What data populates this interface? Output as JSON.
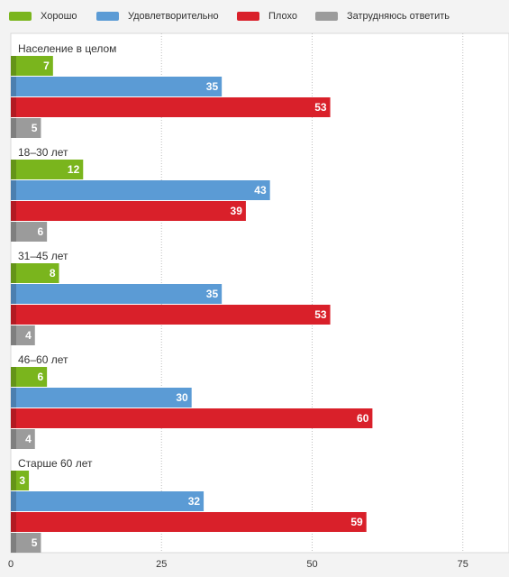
{
  "chart_data": {
    "type": "bar",
    "orientation": "horizontal",
    "categories": [
      "Население в целом",
      "18–30 лет",
      "31–45 лет",
      "46–60 лет",
      "Старше 60 лет"
    ],
    "series": [
      {
        "name": "Хорошо",
        "color": "#7ab51d",
        "values": [
          7,
          12,
          8,
          6,
          3
        ]
      },
      {
        "name": "Удовлетворительно",
        "color": "#5b9bd5",
        "values": [
          35,
          43,
          35,
          30,
          32
        ]
      },
      {
        "name": "Плохо",
        "color": "#d9202a",
        "values": [
          53,
          39,
          53,
          60,
          59
        ]
      },
      {
        "name": "Затрудняюсь ответить",
        "color": "#9b9b9b",
        "values": [
          5,
          6,
          4,
          4,
          5
        ]
      }
    ],
    "xlim": [
      0,
      82
    ],
    "xticks": [
      0,
      25,
      50,
      75
    ],
    "grid": true,
    "legend_position": "top-left"
  }
}
